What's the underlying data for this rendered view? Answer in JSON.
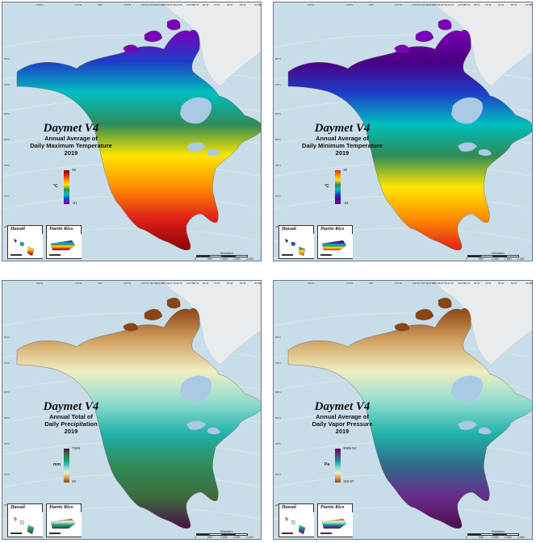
{
  "figure": {
    "panels": [
      {
        "id": "tmax",
        "title": "Daymet V4",
        "subtitle_lines": [
          "Annual Average of",
          "Daily Maximum Temperature",
          "2019"
        ],
        "legend": {
          "max": "35",
          "min": "-21",
          "unit": "°C",
          "colors": [
            "#8b0000",
            "#e0201a",
            "#ff8c00",
            "#ffe600",
            "#2e8b57",
            "#00bfbf",
            "#1e3cc8",
            "#7a00b8"
          ]
        },
        "inset_labels": [
          "Hawaii",
          "Puerto Rico"
        ]
      },
      {
        "id": "tmin",
        "title": "Daymet V4",
        "subtitle_lines": [
          "Annual Average of",
          "Daily Minimum Temperature",
          "2019"
        ],
        "legend": {
          "max": "30",
          "min": "-23",
          "unit": "°C",
          "colors": [
            "#e0201a",
            "#ff8c00",
            "#ffe600",
            "#2e8b57",
            "#00bfbf",
            "#1e3cc8",
            "#4b0082",
            "#7a00b8"
          ]
        },
        "inset_labels": [
          "Hawaii",
          "Puerto Rico"
        ]
      },
      {
        "id": "prcp",
        "title": "Daymet V4",
        "subtitle_lines": [
          "Annual Total of",
          "Daily Precipitation",
          "2019"
        ],
        "legend": {
          "max": "7349",
          "min": "32",
          "unit": "mm",
          "colors": [
            "#4a0f4a",
            "#3d6b3d",
            "#2e8b57",
            "#20b2aa",
            "#8fdcd0",
            "#f0eec0",
            "#d2a060",
            "#8b4513"
          ]
        },
        "inset_labels": [
          "Hawaii",
          "Puerto Rico"
        ]
      },
      {
        "id": "vp",
        "title": "Daymet V4",
        "subtitle_lines": [
          "Annual Average of",
          "Daily Vapor Pressure",
          "2019"
        ],
        "legend": {
          "max": "3069.54",
          "min": "110.67",
          "unit": "Pa",
          "colors": [
            "#4a0f4a",
            "#6a2a8a",
            "#2e6b8b",
            "#20b2aa",
            "#8fdcd0",
            "#f0eec0",
            "#d2a060",
            "#8b4513"
          ]
        },
        "inset_labels": [
          "Hawaii",
          "Puerto Rico"
        ]
      }
    ],
    "scalebar": {
      "ticks": [
        "0",
        "500",
        "1,000",
        "1,500",
        "2,000"
      ],
      "unit": "Kilometers"
    },
    "longitudes": [
      "160°E",
      "170°E",
      "180°",
      "170°W",
      "160°W",
      "150°W",
      "140°W",
      "130°W",
      "120°W",
      "110°W",
      "100°W",
      "90°W",
      "80°W",
      "70°W",
      "60°W",
      "50°W",
      "40°W",
      "30°W"
    ],
    "latitudes": [
      "80°N",
      "70°N",
      "60°N",
      "50°N",
      "40°N",
      "30°N",
      "20°N"
    ],
    "colors": {
      "ocean": "#c9dde9",
      "greenland": "#e8ecef",
      "water_bodies": "#a9c9e4",
      "frame": "#6f7880"
    }
  }
}
